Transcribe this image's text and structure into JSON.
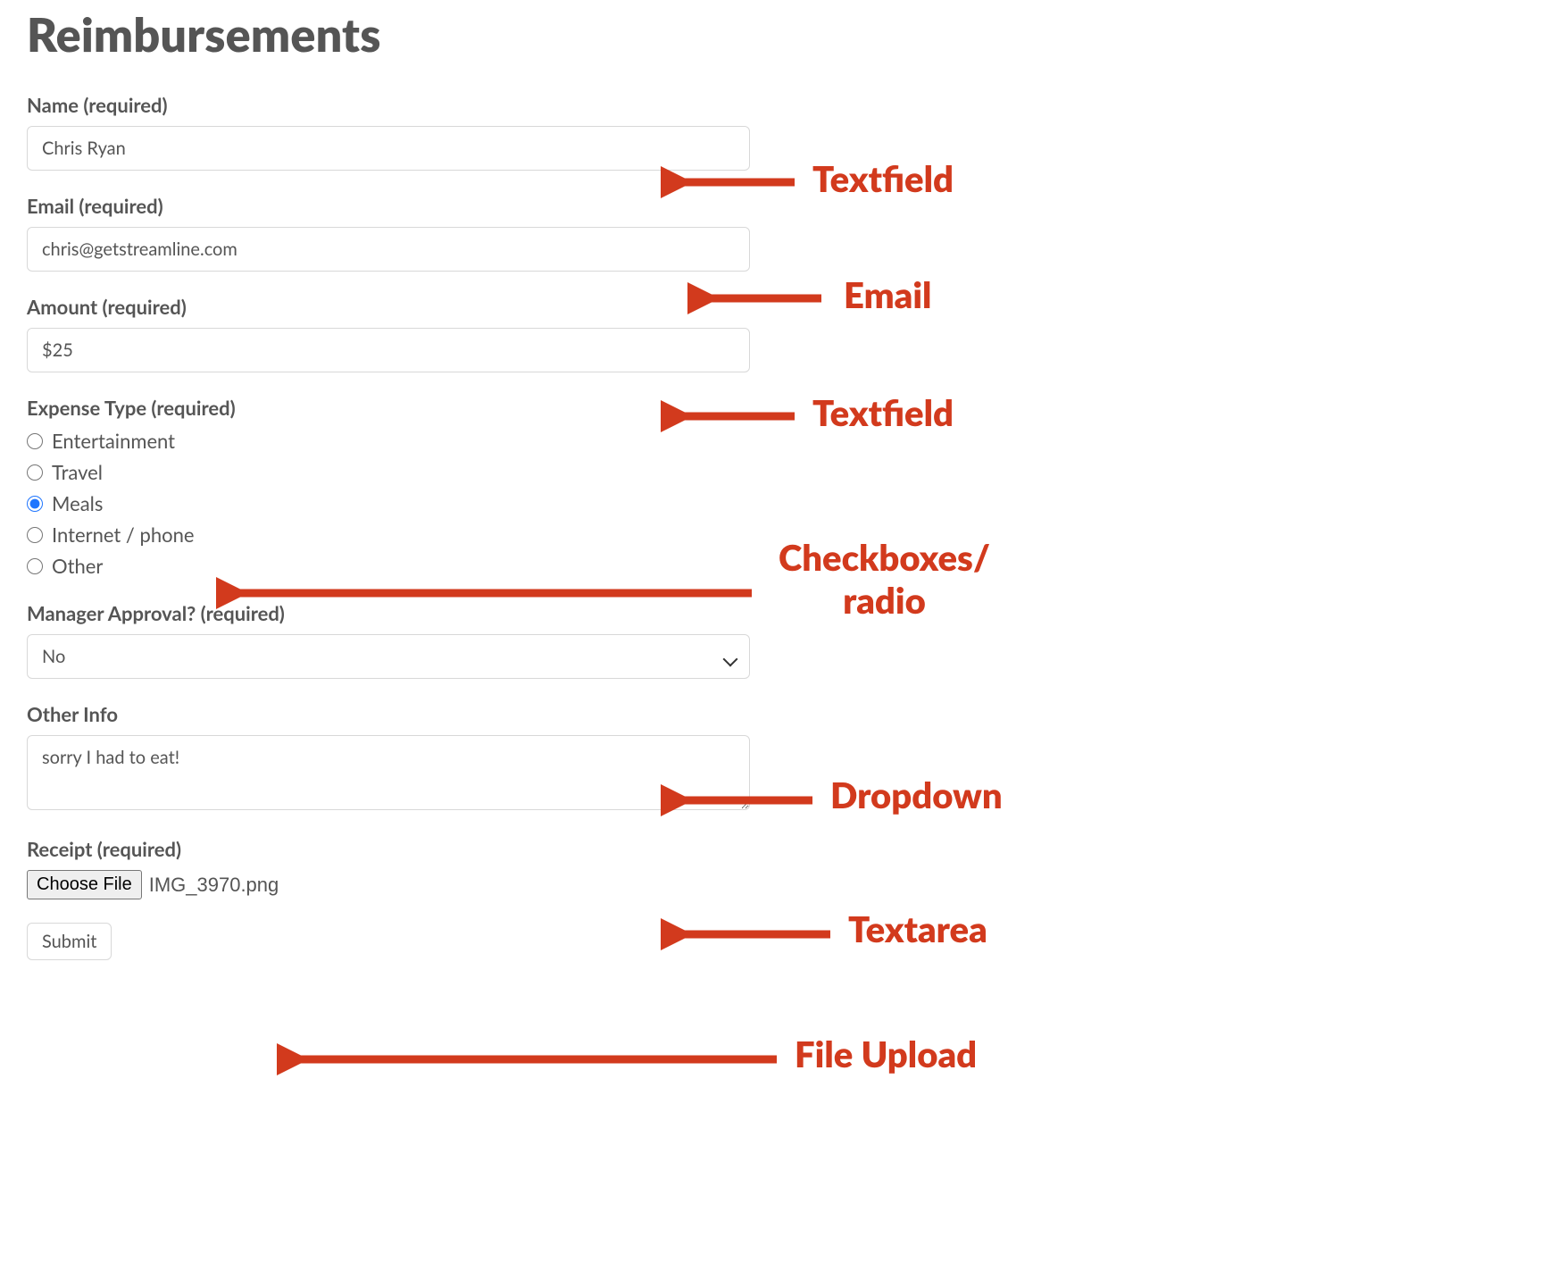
{
  "page_title": "Reimbursements",
  "labels": {
    "name": "Name (required)",
    "email": "Email (required)",
    "amount": "Amount (required)",
    "expense_type": "Expense Type (required)",
    "manager": "Manager Approval? (required)",
    "other_info": "Other Info",
    "receipt": "Receipt (required)"
  },
  "values": {
    "name": "Chris Ryan",
    "email": "chris@getstreamline.com",
    "amount": "$25",
    "manager": "No",
    "other_info": "sorry I had to eat!",
    "choose_file": "Choose File",
    "file_name": "IMG_3970.png",
    "submit": "Submit"
  },
  "expense_options": [
    {
      "label": "Entertainment",
      "selected": false
    },
    {
      "label": "Travel",
      "selected": false
    },
    {
      "label": "Meals",
      "selected": true
    },
    {
      "label": "Internet / phone",
      "selected": false
    },
    {
      "label": "Other",
      "selected": false
    }
  ],
  "annotations": {
    "textfield1": "Textfield",
    "email": "Email",
    "textfield2": "Textfield",
    "radio": "Checkboxes/\nradio",
    "dropdown": "Dropdown",
    "textarea": "Textarea",
    "file": "File Upload"
  },
  "colors": {
    "annotation": "#d23a1d",
    "text": "#555555",
    "border": "#d8d8d8",
    "radio_accent": "#1f75fe"
  }
}
